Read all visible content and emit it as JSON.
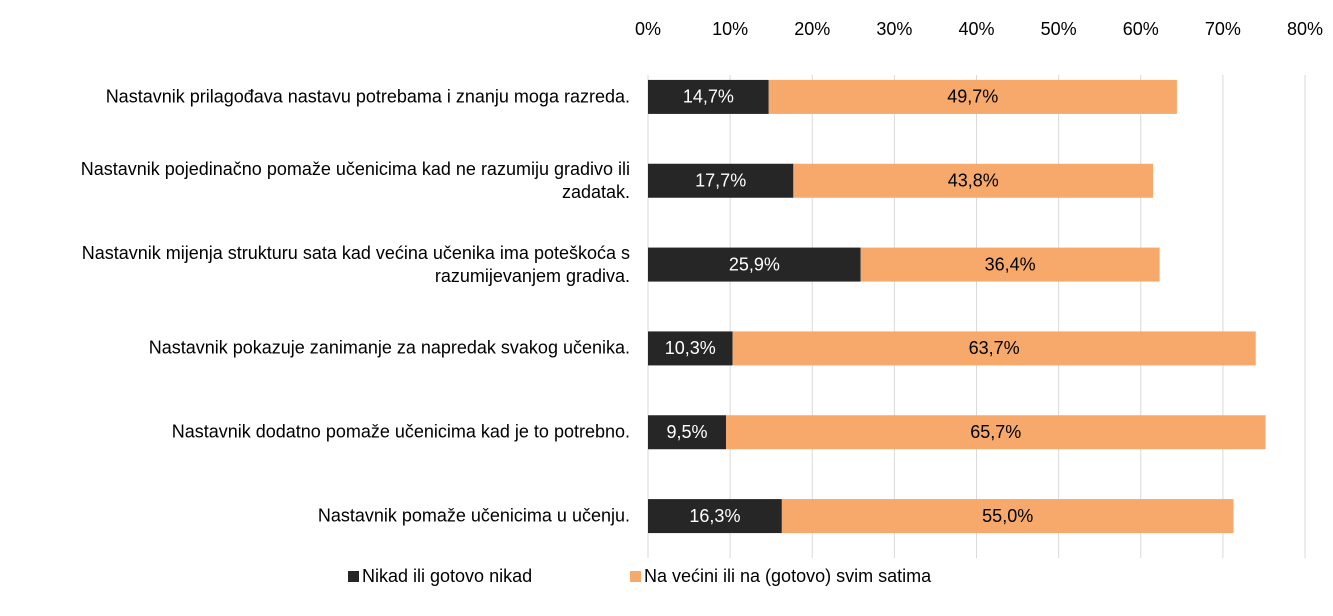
{
  "chart_data": {
    "type": "bar",
    "categories": [
      "Nastavnik prilagođava nastavu potrebama i znanju moga razreda.",
      "Nastavnik pojedinačno pomaže učenicima kad ne razumiju gradivo ili zadatak.",
      "Nastavnik mijenja strukturu sata kad većina učenika ima poteškoća s razumijevanjem gradiva.",
      "Nastavnik pokazuje zanimanje za napredak svakog učenika.",
      "Nastavnik dodatno pomaže učenicima kad je to potrebno.",
      "Nastavnik pomaže učenicima u učenju."
    ],
    "series": [
      {
        "name": "Nikad ili gotovo nikad",
        "color": "#262626",
        "values": [
          14.7,
          17.7,
          25.9,
          10.3,
          9.5,
          16.3
        ],
        "value_labels": [
          "14,7%",
          "17,7%",
          "25,9%",
          "10,3%",
          "9,5%",
          "16,3%"
        ]
      },
      {
        "name": "Na većini ili na (gotovo) svim satima",
        "color": "#f6a96b",
        "values": [
          49.7,
          43.8,
          36.4,
          63.7,
          65.7,
          55.0
        ],
        "value_labels": [
          "49,7%",
          "43,8%",
          "36,4%",
          "63,7%",
          "65,7%",
          "55,0%"
        ]
      }
    ],
    "xlim": [
      0,
      80
    ],
    "xticks": [
      {
        "value": 0,
        "label": "0%"
      },
      {
        "value": 10,
        "label": "10%"
      },
      {
        "value": 20,
        "label": "20%"
      },
      {
        "value": 30,
        "label": "30%"
      },
      {
        "value": 40,
        "label": "40%"
      },
      {
        "value": 50,
        "label": "50%"
      },
      {
        "value": 60,
        "label": "60%"
      },
      {
        "value": 70,
        "label": "70%"
      },
      {
        "value": 80,
        "label": "80%"
      }
    ],
    "grid": true,
    "legend": "bottom"
  }
}
